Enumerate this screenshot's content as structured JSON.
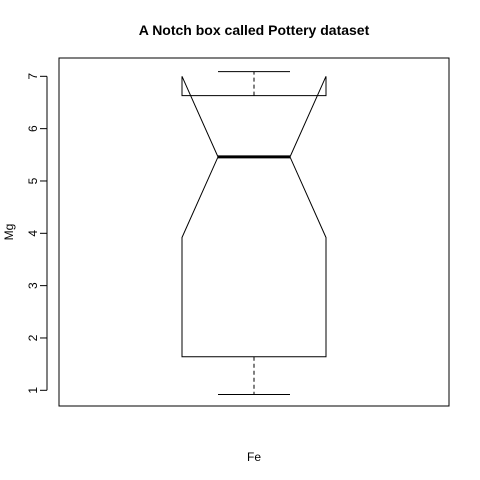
{
  "chart_data": {
    "type": "boxplot",
    "variant": "notched",
    "title": "A Notch box called Pottery dataset",
    "xlabel": "Fe",
    "ylabel": "Mg",
    "ylim": [
      0.7,
      7.35
    ],
    "yticks": [
      1,
      2,
      3,
      4,
      5,
      6,
      7
    ],
    "ytick_labels": [
      "1",
      "2",
      "3",
      "4",
      "5",
      "6",
      "7"
    ],
    "grid": false,
    "boxes": [
      {
        "whisker_low": 0.92,
        "q1": 1.64,
        "notch_low": 3.92,
        "median": 5.46,
        "notch_high": 7.0,
        "q3": 6.63,
        "whisker_high": 7.09
      }
    ]
  }
}
